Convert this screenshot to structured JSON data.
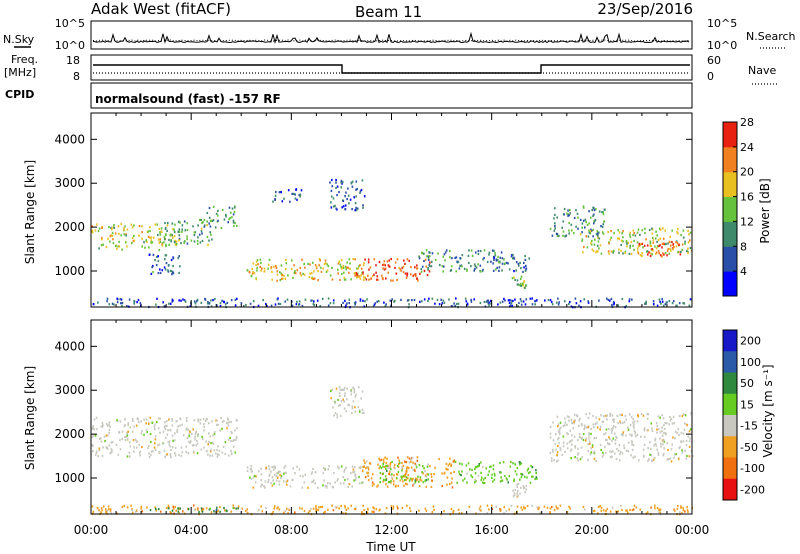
{
  "header": {
    "title": "Adak West (fitACF)",
    "beam": "Beam 11",
    "date": "23/Sep/2016"
  },
  "nsky_panel": {
    "left_label": "N.Sky",
    "right_label": "N.Search",
    "ticks_left": [
      "10^5",
      "10^0"
    ],
    "ticks_right": [
      "10^5",
      "10^0"
    ]
  },
  "freq_panel": {
    "left_label_1": "Freq.",
    "left_label_2": "[MHz]",
    "right_label": "Nave",
    "ticks_left": [
      "18",
      "8"
    ],
    "ticks_right": [
      "60",
      "0"
    ]
  },
  "cpid_panel": {
    "left_label": "CPID",
    "program": "normalsound (fast) -157 RF"
  },
  "x_axis": {
    "label": "Time UT",
    "ticks": [
      "00:00",
      "04:00",
      "08:00",
      "12:00",
      "16:00",
      "20:00",
      "00:00"
    ]
  },
  "chart_data": [
    {
      "type": "heatmap",
      "name": "power",
      "ylabel": "Slant Range [km]",
      "yticks": [
        1000,
        2000,
        3000,
        4000
      ],
      "ylim": [
        180,
        4600
      ],
      "xlim_hours": [
        0,
        24
      ],
      "colorbar": {
        "label": "Power [dB]",
        "tick_labels": [
          "4",
          "8",
          "12",
          "16",
          "20",
          "24",
          "28"
        ],
        "range": [
          0,
          30
        ],
        "colors": [
          "#0000ff",
          "#2a4fa8",
          "#3f8a6a",
          "#66c23a",
          "#e8c020",
          "#f08020",
          "#e82010"
        ]
      },
      "regions": [
        {
          "t": [
            0.0,
            3.4
          ],
          "r": [
            1500,
            2100
          ],
          "level": 16
        },
        {
          "t": [
            2.9,
            4.8
          ],
          "r": [
            1600,
            2200
          ],
          "level": 12
        },
        {
          "t": [
            4.6,
            5.8
          ],
          "r": [
            2000,
            2500
          ],
          "level": 10
        },
        {
          "t": [
            2.3,
            3.6
          ],
          "r": [
            900,
            1400
          ],
          "level": 8
        },
        {
          "t": [
            6.2,
            11.0
          ],
          "r": [
            800,
            1300
          ],
          "level": 18
        },
        {
          "t": [
            10.5,
            13.5
          ],
          "r": [
            800,
            1300
          ],
          "level": 24
        },
        {
          "t": [
            13.0,
            16.5
          ],
          "r": [
            1000,
            1500
          ],
          "level": 10
        },
        {
          "t": [
            16.0,
            17.5
          ],
          "r": [
            1000,
            1400
          ],
          "level": 8
        },
        {
          "t": [
            16.8,
            17.4
          ],
          "r": [
            600,
            900
          ],
          "level": 14
        },
        {
          "t": [
            7.2,
            8.5
          ],
          "r": [
            2600,
            2900
          ],
          "level": 6
        },
        {
          "t": [
            9.5,
            10.9
          ],
          "r": [
            2400,
            3100
          ],
          "level": 6
        },
        {
          "t": [
            18.3,
            20.5
          ],
          "r": [
            1800,
            2500
          ],
          "level": 10
        },
        {
          "t": [
            19.5,
            24.0
          ],
          "r": [
            1400,
            2000
          ],
          "level": 16
        },
        {
          "t": [
            21.8,
            23.6
          ],
          "r": [
            1350,
            1700
          ],
          "level": 24
        },
        {
          "t": [
            0.0,
            24.0
          ],
          "r": [
            200,
            400
          ],
          "level": 6
        }
      ]
    },
    {
      "type": "heatmap",
      "name": "velocity",
      "ylabel": "Slant Range [km]",
      "yticks": [
        1000,
        2000,
        3000,
        4000
      ],
      "ylim": [
        180,
        4600
      ],
      "xlim_hours": [
        0,
        24
      ],
      "colorbar": {
        "label": "Velocity [m s⁻¹]",
        "tick_labels": [
          "200",
          "100",
          "50",
          "15",
          "-15",
          "-50",
          "-100",
          "-200"
        ],
        "colors": [
          "#1818c8",
          "#2a5aa8",
          "#2f8a40",
          "#66cc22",
          "#c8c8c0",
          "#f0a020",
          "#f07010",
          "#e81010"
        ]
      },
      "regions": [
        {
          "t": [
            0.0,
            5.8
          ],
          "r": [
            1500,
            2400
          ],
          "level": "-15"
        },
        {
          "t": [
            6.2,
            10.8
          ],
          "r": [
            800,
            1300
          ],
          "level": "-15"
        },
        {
          "t": [
            10.8,
            14.5
          ],
          "r": [
            800,
            1500
          ],
          "level": "-50"
        },
        {
          "t": [
            11.5,
            13.5
          ],
          "r": [
            900,
            1400
          ],
          "level": "15"
        },
        {
          "t": [
            14.5,
            17.8
          ],
          "r": [
            900,
            1400
          ],
          "level": "15"
        },
        {
          "t": [
            16.8,
            17.4
          ],
          "r": [
            600,
            900
          ],
          "level": "-15"
        },
        {
          "t": [
            9.5,
            10.9
          ],
          "r": [
            2400,
            3100
          ],
          "level": "-15"
        },
        {
          "t": [
            18.3,
            24.0
          ],
          "r": [
            1400,
            2500
          ],
          "level": "-15"
        },
        {
          "t": [
            0.0,
            24.0
          ],
          "r": [
            200,
            400
          ],
          "level": "-50"
        },
        {
          "t": [
            2.0,
            6.0
          ],
          "r": [
            250,
            350
          ],
          "level": "50"
        }
      ]
    }
  ]
}
